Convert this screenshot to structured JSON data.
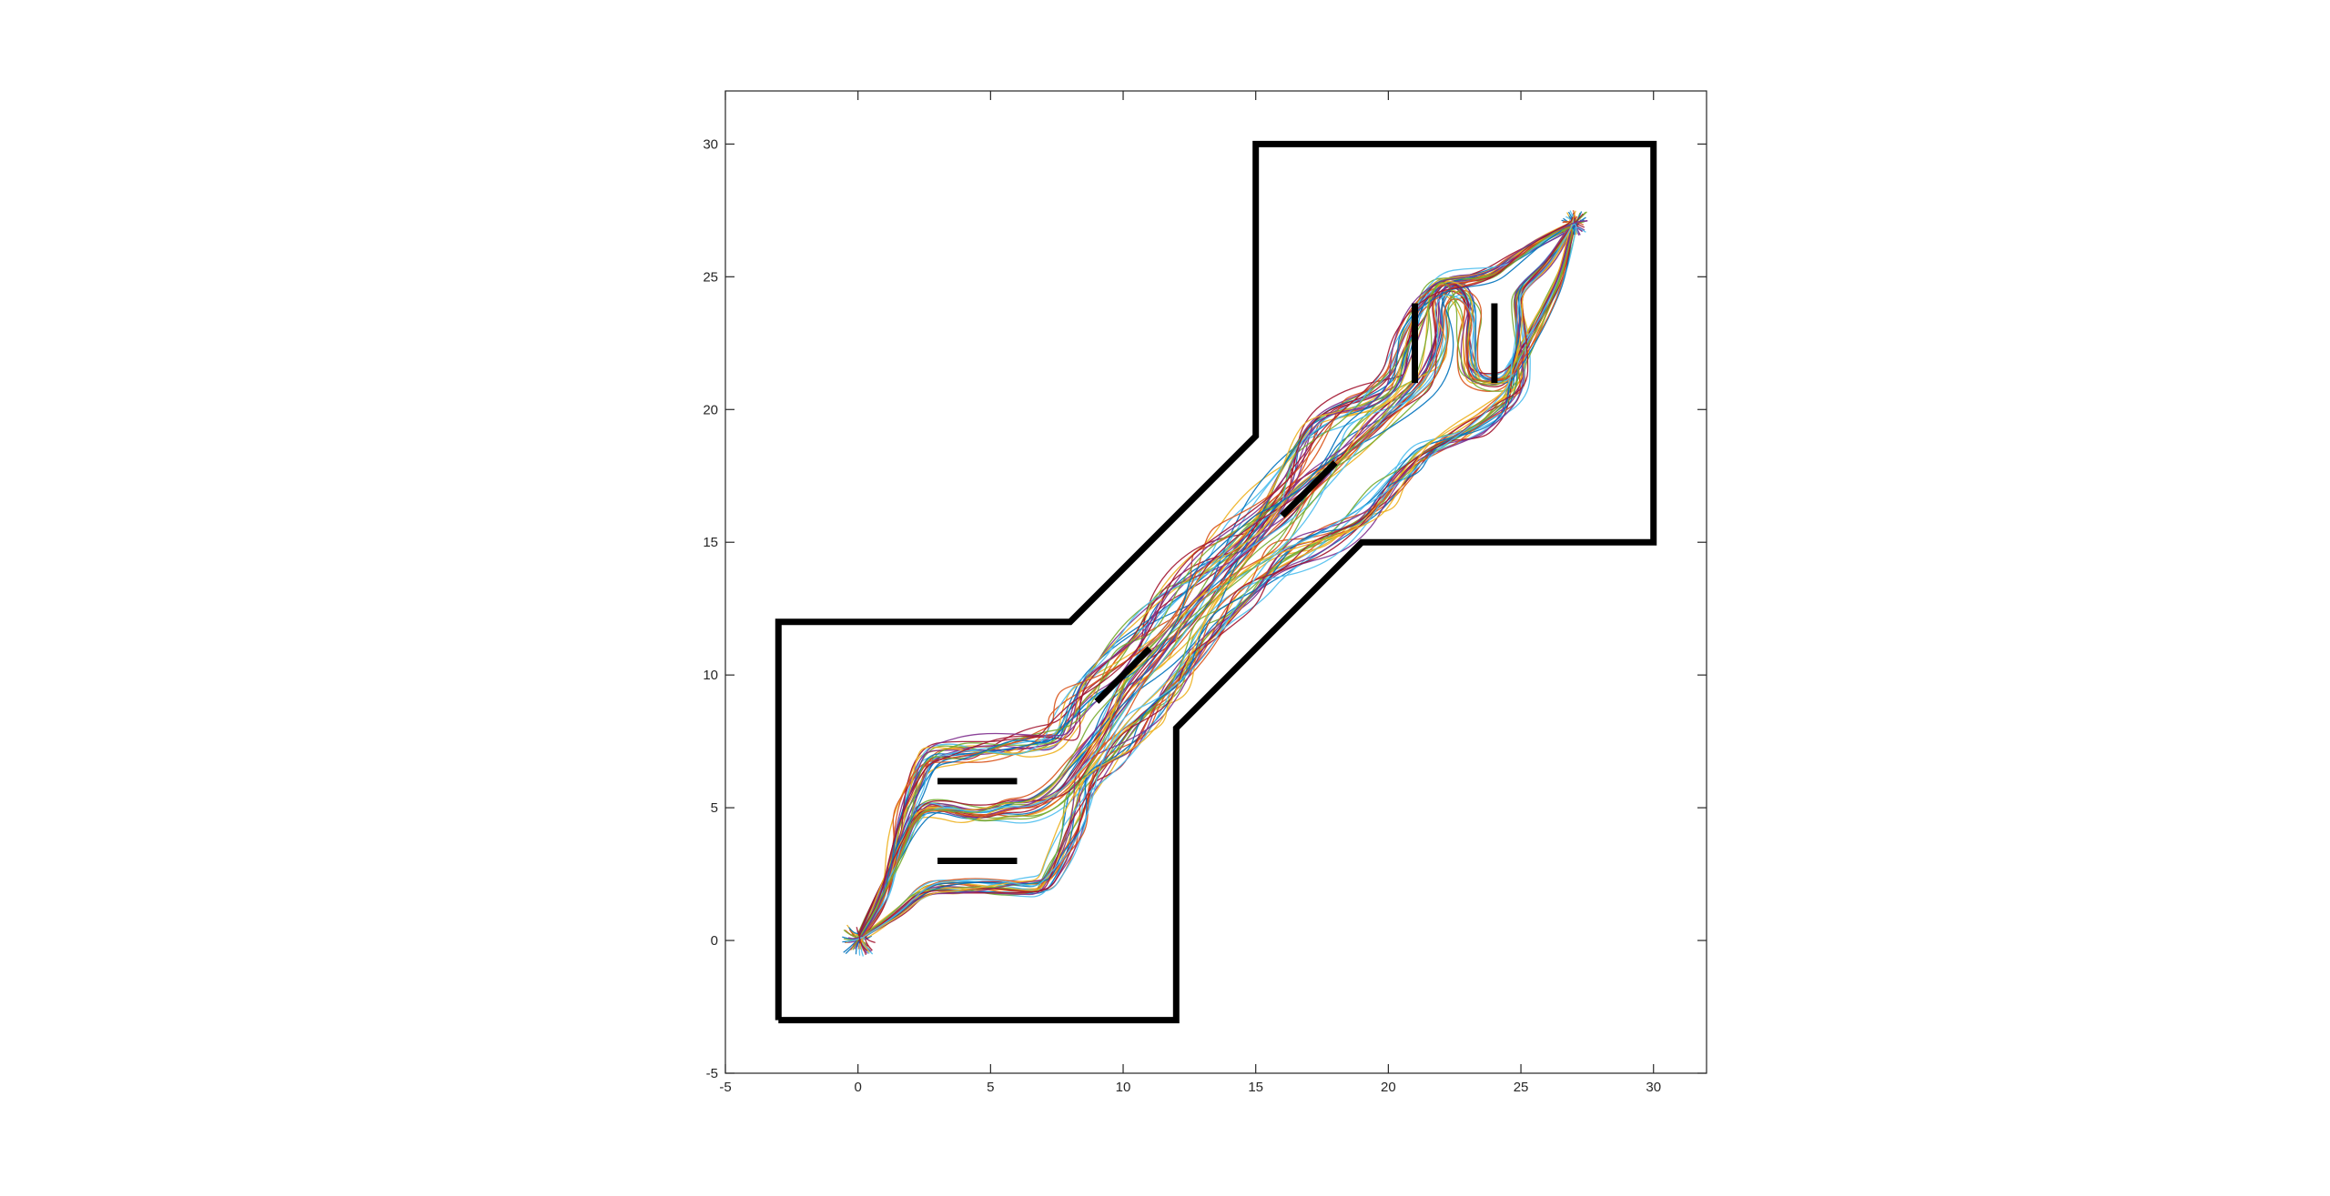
{
  "chart_data": {
    "type": "line",
    "title": "",
    "xlabel": "",
    "ylabel": "",
    "xlim": [
      -5,
      32
    ],
    "ylim": [
      -5,
      32
    ],
    "xticks": [
      -5,
      0,
      5,
      10,
      15,
      20,
      25,
      30
    ],
    "yticks": [
      -5,
      0,
      5,
      10,
      15,
      20,
      25,
      30
    ],
    "grid": false,
    "legend": "none",
    "box": true,
    "boundary": {
      "color": "#000000",
      "points": [
        [
          -3,
          -3
        ],
        [
          12,
          -3
        ],
        [
          12,
          8
        ],
        [
          19,
          15
        ],
        [
          30,
          15
        ],
        [
          30,
          30
        ],
        [
          15,
          30
        ],
        [
          15,
          19
        ],
        [
          8,
          12
        ],
        [
          -3,
          12
        ],
        [
          -3,
          -3
        ]
      ]
    },
    "obstacles": {
      "color": "#000000",
      "segments": [
        [
          [
            3,
            6
          ],
          [
            6,
            6
          ]
        ],
        [
          [
            3,
            3
          ],
          [
            6,
            3
          ]
        ],
        [
          [
            9,
            9
          ],
          [
            11,
            11
          ]
        ],
        [
          [
            16,
            16
          ],
          [
            18,
            18
          ]
        ],
        [
          [
            21,
            21
          ],
          [
            21,
            24
          ]
        ],
        [
          [
            24,
            21
          ],
          [
            24,
            24
          ]
        ]
      ]
    },
    "series_colors": [
      "#0072BD",
      "#D95319",
      "#EDB120",
      "#7E2F8E",
      "#77AC30",
      "#4DBEEE",
      "#A2142F"
    ],
    "series_count": 70,
    "reference_paths": {
      "upper": [
        [
          0,
          0
        ],
        [
          1,
          1.5
        ],
        [
          1.8,
          5
        ],
        [
          2.5,
          7
        ],
        [
          4,
          7.2
        ],
        [
          6,
          7.3
        ],
        [
          7.5,
          7.5
        ],
        [
          8.5,
          9.5
        ],
        [
          10.5,
          11.5
        ],
        [
          12.5,
          13.5
        ],
        [
          14.5,
          15.5
        ],
        [
          16,
          17.5
        ],
        [
          17.5,
          19.5
        ],
        [
          19.5,
          20.5
        ],
        [
          20.2,
          21.2
        ],
        [
          20.6,
          22.8
        ],
        [
          21.2,
          24.2
        ],
        [
          22,
          24.8
        ],
        [
          23.8,
          25
        ],
        [
          25.5,
          26.2
        ],
        [
          27,
          27
        ]
      ],
      "middle": [
        [
          0,
          0
        ],
        [
          1.2,
          2.5
        ],
        [
          2.3,
          5
        ],
        [
          3.5,
          5
        ],
        [
          4.5,
          4.6
        ],
        [
          5.5,
          5
        ],
        [
          6.5,
          5
        ],
        [
          7.5,
          5.5
        ],
        [
          9,
          7.5
        ],
        [
          10.5,
          9.8
        ],
        [
          12,
          11.5
        ],
        [
          13.5,
          13.5
        ],
        [
          15.5,
          15.5
        ],
        [
          17,
          17
        ],
        [
          18.5,
          18.5
        ],
        [
          20,
          20
        ],
        [
          21.5,
          21.2
        ],
        [
          22,
          22.8
        ],
        [
          21.8,
          24.2
        ],
        [
          22.5,
          24.8
        ],
        [
          23.2,
          24
        ],
        [
          23,
          22.5
        ],
        [
          23.2,
          21
        ],
        [
          24.5,
          21
        ],
        [
          25.5,
          23
        ],
        [
          26.5,
          25
        ],
        [
          27,
          27
        ]
      ],
      "lower": [
        [
          0,
          0
        ],
        [
          1.5,
          1
        ],
        [
          2.5,
          2
        ],
        [
          4,
          2
        ],
        [
          6,
          2
        ],
        [
          7,
          2
        ],
        [
          7.8,
          3.5
        ],
        [
          8.5,
          6
        ],
        [
          10,
          7.5
        ],
        [
          11.5,
          9
        ],
        [
          13.5,
          12
        ],
        [
          15.5,
          14
        ],
        [
          17.5,
          15
        ],
        [
          19.5,
          16.5
        ],
        [
          21.5,
          18.5
        ],
        [
          23.5,
          19.5
        ],
        [
          24.8,
          20.5
        ],
        [
          25,
          22.5
        ],
        [
          24.8,
          24.5
        ],
        [
          26,
          25.5
        ],
        [
          27,
          27
        ]
      ]
    }
  }
}
